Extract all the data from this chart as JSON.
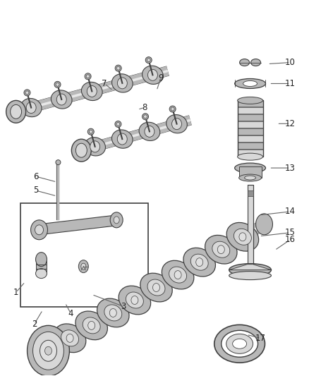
{
  "bg_color": "#ffffff",
  "line_color": "#404040",
  "fill_light": "#d8d8d8",
  "fill_mid": "#b8b8b8",
  "fill_dark": "#909090",
  "label_color": "#222222",
  "label_fontsize": 8.5,
  "leader_color": "#666666",
  "leader_lw": 0.8
}
